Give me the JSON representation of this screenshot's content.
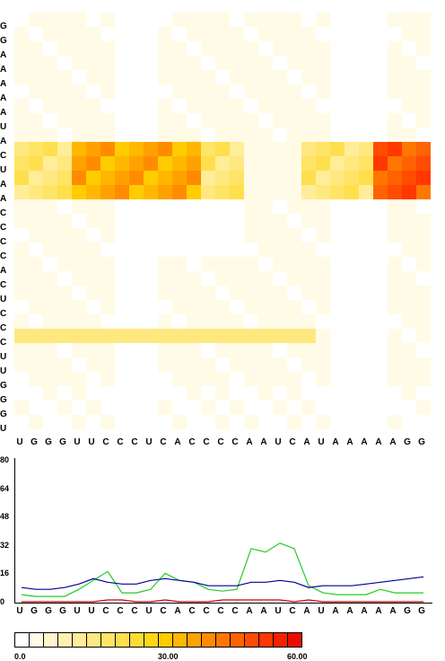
{
  "heatmap": {
    "row_sequence": [
      "G",
      "G",
      "A",
      "A",
      "A",
      "A",
      "A",
      "U",
      "A",
      "C",
      "U",
      "A",
      "A",
      "C",
      "C",
      "C",
      "C",
      "A",
      "C",
      "U",
      "C",
      "C",
      "C",
      "U",
      "U",
      "G",
      "G",
      "G",
      "U"
    ],
    "col_sequence": [
      "U",
      "G",
      "G",
      "G",
      "U",
      "U",
      "C",
      "C",
      "C",
      "U",
      "C",
      "A",
      "C",
      "C",
      "C",
      "C",
      "A",
      "A",
      "U",
      "C",
      "A",
      "U",
      "A",
      "A",
      "A",
      "A",
      "A",
      "G",
      "G"
    ]
  },
  "chart_data": {
    "type": "line",
    "x_labels": [
      "U",
      "G",
      "G",
      "G",
      "U",
      "U",
      "C",
      "C",
      "C",
      "U",
      "C",
      "A",
      "C",
      "C",
      "C",
      "C",
      "A",
      "A",
      "U",
      "C",
      "A",
      "U",
      "A",
      "A",
      "A",
      "A",
      "A",
      "G",
      "G"
    ],
    "ylim": [
      0,
      80
    ],
    "yticks": [
      "0",
      "16",
      "32",
      "48",
      "64",
      "80"
    ],
    "series": [
      {
        "color": "#22cc22",
        "values": [
          4,
          3,
          3,
          3,
          7,
          12,
          17,
          5,
          5,
          7,
          16,
          12,
          11,
          7,
          6,
          7,
          30,
          28,
          33,
          30,
          9,
          5,
          4,
          4,
          4,
          7,
          5,
          5,
          5
        ]
      },
      {
        "color": "#000099",
        "values": [
          8,
          7,
          7,
          8,
          10,
          13,
          11,
          10,
          10,
          12,
          13,
          12,
          11,
          9,
          9,
          9,
          11,
          11,
          12,
          11,
          8,
          9,
          9,
          9,
          10,
          11,
          12,
          13,
          14
        ]
      },
      {
        "color": "#cc0000",
        "values": [
          0,
          0,
          0,
          0,
          0,
          0,
          1,
          1,
          0,
          0,
          1,
          0,
          0,
          0,
          1,
          1,
          1,
          1,
          1,
          0,
          1,
          0,
          0,
          0,
          0,
          0,
          0,
          0,
          0
        ]
      }
    ]
  },
  "legend": {
    "min_label": "0.0",
    "mid_label": "30.00",
    "max_label": "60.00",
    "colors": [
      "#ffffff",
      "#fffbe6",
      "#fff6cc",
      "#fff1b3",
      "#ffed99",
      "#ffe880",
      "#ffe466",
      "#ffdf4d",
      "#ffdb33",
      "#ffd61a",
      "#ffcc00",
      "#ffb700",
      "#ffa200",
      "#ff8c00",
      "#ff7700",
      "#ff6200",
      "#ff4c00",
      "#ff3700",
      "#f52200",
      "#eb0d00"
    ]
  }
}
